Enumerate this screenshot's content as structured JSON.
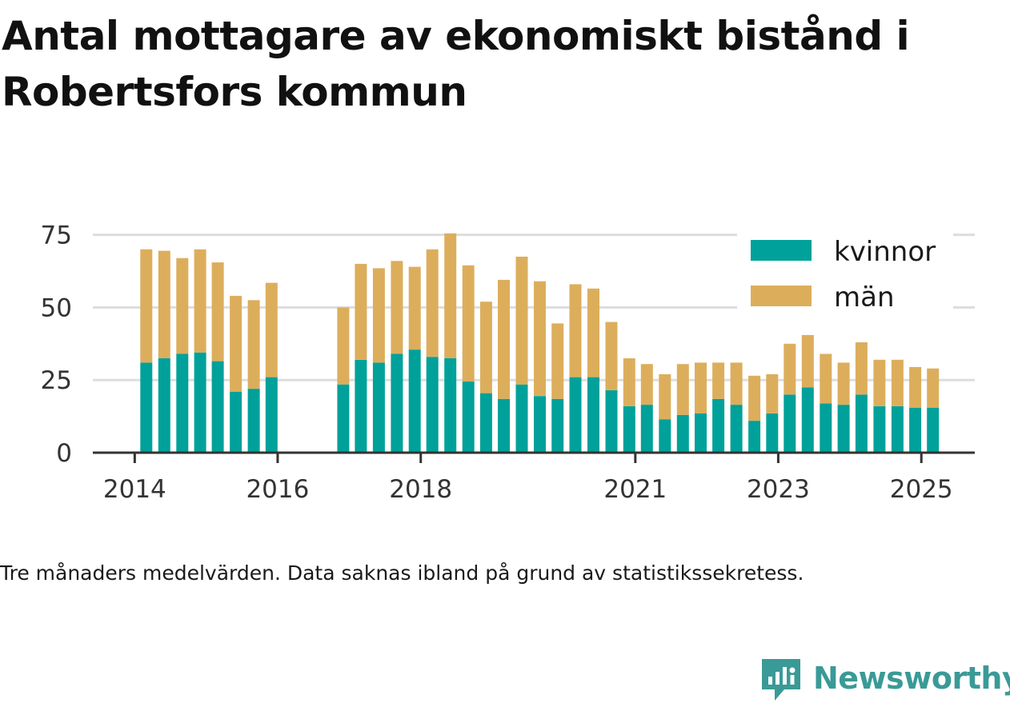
{
  "title": "Antal mottagare av ekonomiskt bistånd i Robertsfors kommun",
  "note": "Tre månaders medelvärden. Data saknas ibland på grund av statistikssekretess.",
  "brand": {
    "name": "Newsworthy",
    "icon": "newsworthy-logo-icon"
  },
  "colors": {
    "kvinnor": "#00a19a",
    "man": "#dcae5c",
    "grid": "#dddddd",
    "axis": "#333333"
  },
  "chart_data": {
    "type": "bar",
    "stacked": true,
    "x_type": "time",
    "x_range": [
      "2013-06-01",
      "2025-10-01"
    ],
    "ylim": [
      0,
      76
    ],
    "yticks": [
      0,
      25,
      50,
      75
    ],
    "xticks": [
      {
        "date": "2014-01-01",
        "label": "2014"
      },
      {
        "date": "2016-01-01",
        "label": "2016"
      },
      {
        "date": "2018-01-01",
        "label": "2018"
      },
      {
        "date": "2021-01-01",
        "label": "2021"
      },
      {
        "date": "2023-01-01",
        "label": "2023"
      },
      {
        "date": "2025-01-01",
        "label": "2025"
      }
    ],
    "grid": true,
    "legend_position": "top-right",
    "x": [
      "2014-03",
      "2014-06",
      "2014-09",
      "2014-12",
      "2015-03",
      "2015-06",
      "2015-09",
      "2015-12",
      "2016-12",
      "2017-03",
      "2017-06",
      "2017-09",
      "2017-12",
      "2018-03",
      "2018-06",
      "2018-09",
      "2018-12",
      "2019-03",
      "2019-06",
      "2019-09",
      "2019-12",
      "2020-03",
      "2020-06",
      "2020-09",
      "2020-12",
      "2021-03",
      "2021-06",
      "2021-09",
      "2021-12",
      "2022-03",
      "2022-06",
      "2022-09",
      "2022-12",
      "2023-03",
      "2023-06",
      "2023-09",
      "2023-12",
      "2024-03",
      "2024-06",
      "2024-09",
      "2024-12",
      "2025-03"
    ],
    "series": [
      {
        "name": "kvinnor",
        "values": [
          31,
          32.5,
          34,
          34.5,
          31.5,
          21,
          22,
          26,
          23.5,
          32,
          31,
          34,
          35.5,
          33,
          32.5,
          24.5,
          20.5,
          18.5,
          23.5,
          19.5,
          18.5,
          26,
          26,
          21.5,
          16,
          16.5,
          11.5,
          13,
          13.5,
          18.5,
          16.5,
          11,
          13.5,
          20,
          22.5,
          17,
          16.5,
          20,
          16,
          16,
          15.5,
          15.5
        ]
      },
      {
        "name": "män",
        "values": [
          39,
          37,
          33,
          35.5,
          34,
          33,
          30.5,
          32.5,
          26.5,
          33,
          32.5,
          32,
          28.5,
          37,
          43,
          40,
          31.5,
          41,
          44,
          39.5,
          26,
          32,
          30.5,
          23.5,
          16.5,
          14,
          15.5,
          17.5,
          17.5,
          12.5,
          14.5,
          15.5,
          13.5,
          17.5,
          18,
          17,
          14.5,
          18,
          16,
          16,
          14,
          13.5
        ]
      }
    ]
  }
}
